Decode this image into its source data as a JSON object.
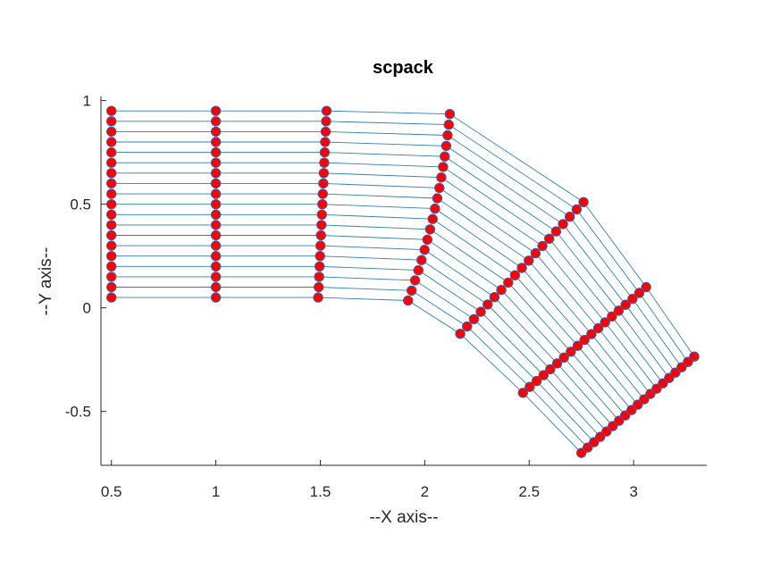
{
  "chart_data": {
    "type": "line",
    "title": "scpack",
    "xlabel": "--X axis--",
    "ylabel": "--Y axis--",
    "xlim": [
      0.45,
      3.35
    ],
    "ylim": [
      -0.76,
      1.02
    ],
    "xticks": [
      "0.5",
      "1",
      "1.5",
      "2",
      "2.5",
      "3"
    ],
    "xtick_values": [
      0.5,
      1,
      1.5,
      2,
      2.5,
      3
    ],
    "yticks": [
      "-0.5",
      "0",
      "0.5",
      "1"
    ],
    "ytick_values": [
      -0.5,
      0,
      0.5,
      1
    ],
    "grid": false,
    "legend": "none",
    "line_color": "#2e7fb0",
    "marker_face": "#ff0000",
    "marker_edge": "#3b5dab",
    "points_per_column": 19,
    "columns": [
      {
        "x_start": 0.5,
        "y_start": 0.05,
        "x_end": 0.5,
        "y_end": 0.95,
        "bow": 0.0
      },
      {
        "x_start": 1.0,
        "y_start": 0.05,
        "x_end": 1.0,
        "y_end": 0.95,
        "bow": 0.0
      },
      {
        "x_start": 1.49,
        "y_start": 0.05,
        "x_end": 1.53,
        "y_end": 0.95,
        "bow": 0.0
      },
      {
        "x_start": 1.92,
        "y_start": 0.035,
        "x_end": 2.12,
        "y_end": 0.935,
        "bow": 0.03
      },
      {
        "x_start": 2.17,
        "y_start": -0.125,
        "x_end": 2.76,
        "y_end": 0.51,
        "bow": 0.0
      },
      {
        "x_start": 2.47,
        "y_start": -0.41,
        "x_end": 3.06,
        "y_end": 0.1,
        "bow": 0.0
      },
      {
        "x_start": 2.75,
        "y_start": -0.7,
        "x_end": 3.29,
        "y_end": -0.235,
        "bow": 0.0
      }
    ]
  }
}
